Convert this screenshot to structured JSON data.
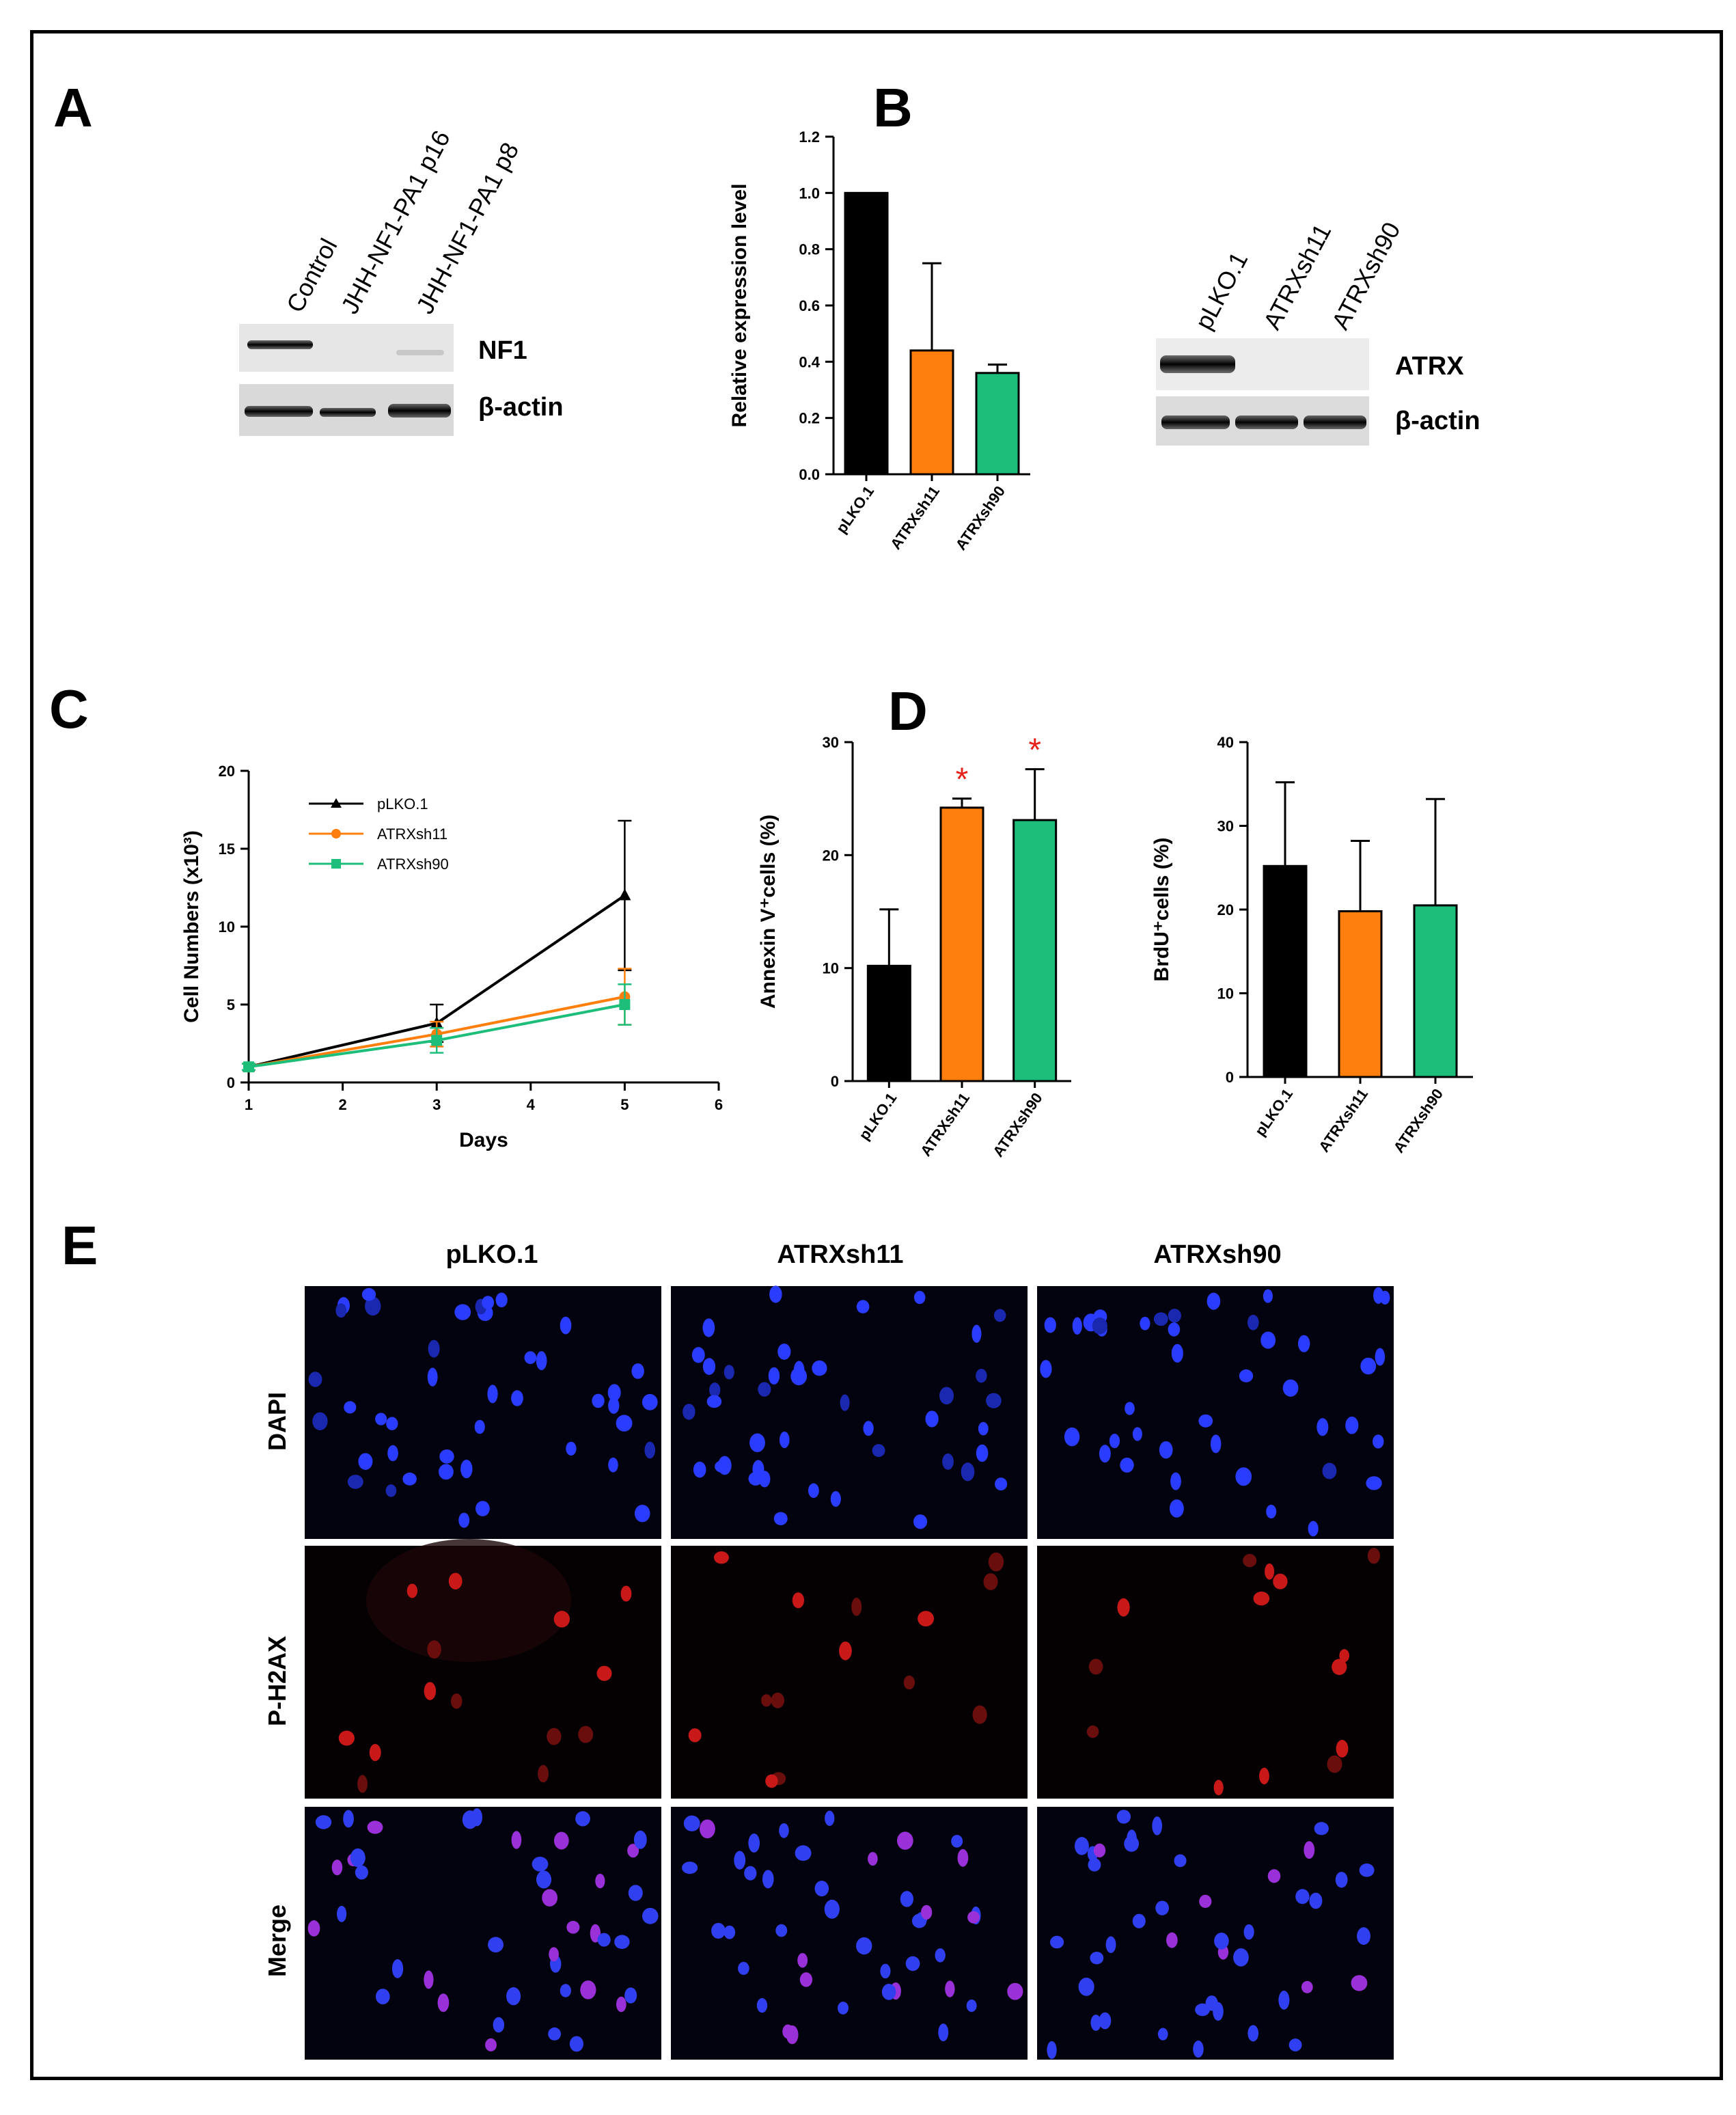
{
  "panels": {
    "A": "A",
    "B": "B",
    "C": "C",
    "D": "D",
    "E": "E"
  },
  "colors": {
    "pLKO": "#000000",
    "sh11": "#FF7F0E",
    "sh90": "#1DBE7A",
    "sig": "#E8201A"
  },
  "blotA": {
    "lanes": [
      "Control",
      "JHH-NF1-PA1 p16",
      "JHH-NF1-PA1 p8"
    ],
    "rows": [
      "NF1",
      "β-actin"
    ]
  },
  "blotB": {
    "lanes": [
      "pLKO.1",
      "ATRXsh11",
      "ATRXsh90"
    ],
    "rows": [
      "ATRX",
      "β-actin"
    ]
  },
  "microscopy": {
    "columns": [
      "pLKO.1",
      "ATRXsh11",
      "ATRXsh90"
    ],
    "rows": [
      "DAPI",
      "P-H2AX",
      "Merge"
    ]
  },
  "chart_data": [
    {
      "id": "B-bar",
      "type": "bar",
      "categories": [
        "pLKO.1",
        "ATRXsh11",
        "ATRXsh90"
      ],
      "values": [
        1.0,
        0.44,
        0.36
      ],
      "errors": [
        0,
        0.31,
        0.03
      ],
      "ylabel": "Relative expression level",
      "ylim": [
        0,
        1.2
      ],
      "yticks": [
        "0.0",
        "0.2",
        "0.4",
        "0.6",
        "0.8",
        "1.0",
        "1.2"
      ],
      "significant": [
        false,
        false,
        false
      ]
    },
    {
      "id": "C-line",
      "type": "line",
      "xlabel": "Days",
      "ylabel": "Cell Numbers (x10³)",
      "xlim": [
        1,
        6
      ],
      "ylim": [
        0,
        20
      ],
      "xticks": [
        "1",
        "2",
        "3",
        "4",
        "5",
        "6"
      ],
      "yticks": [
        "0",
        "5",
        "10",
        "15",
        "20"
      ],
      "x": [
        1,
        3,
        5
      ],
      "series": [
        {
          "name": "pLKO.1",
          "values": [
            1.0,
            3.8,
            12.0
          ],
          "errors": [
            0.2,
            1.2,
            4.8
          ],
          "marker": "triangle"
        },
        {
          "name": "ATRXsh11",
          "values": [
            1.0,
            3.1,
            5.5
          ],
          "errors": [
            0.2,
            0.8,
            1.8
          ],
          "marker": "circle"
        },
        {
          "name": "ATRXsh90",
          "values": [
            1.0,
            2.7,
            5.0
          ],
          "errors": [
            0.2,
            0.8,
            1.3
          ],
          "marker": "square"
        }
      ]
    },
    {
      "id": "D-annexin",
      "type": "bar",
      "categories": [
        "pLKO.1",
        "ATRXsh11",
        "ATRXsh90"
      ],
      "values": [
        10.2,
        24.2,
        23.1
      ],
      "errors": [
        5.0,
        0.8,
        4.5
      ],
      "ylabel": "Annexin V⁺cells (%)",
      "ylim": [
        0,
        30
      ],
      "yticks": [
        "0",
        "10",
        "20",
        "30"
      ],
      "significant": [
        false,
        true,
        true
      ],
      "sig_symbol": "*"
    },
    {
      "id": "D-brdu",
      "type": "bar",
      "categories": [
        "pLKO.1",
        "ATRXsh11",
        "ATRXsh90"
      ],
      "values": [
        25.2,
        19.8,
        20.5
      ],
      "errors": [
        10.0,
        8.4,
        12.7
      ],
      "ylabel": "BrdU⁺cells (%)",
      "ylim": [
        0,
        40
      ],
      "yticks": [
        "0",
        "10",
        "20",
        "30",
        "40"
      ],
      "significant": [
        false,
        false,
        false
      ]
    }
  ]
}
